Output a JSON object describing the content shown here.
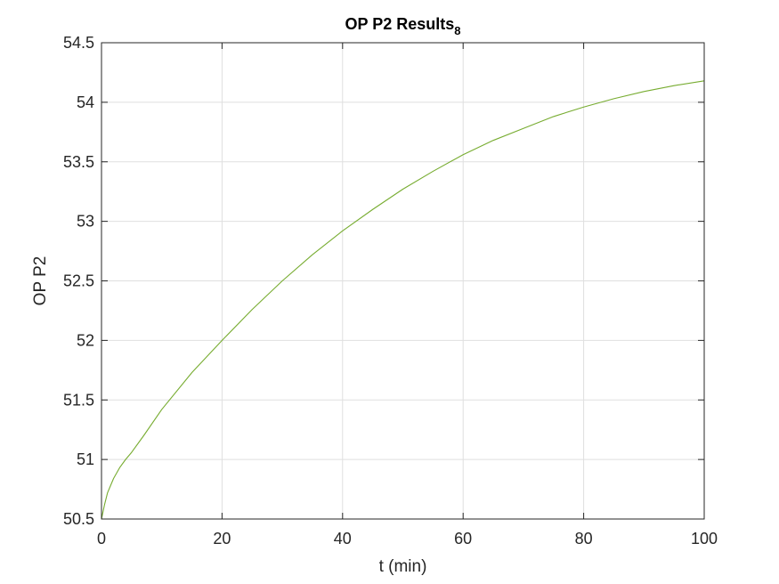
{
  "chart_data": {
    "type": "line",
    "title": "OP P2 Results",
    "title_subscript": "8",
    "xlabel": "t (min)",
    "ylabel": "OP P2",
    "xlim": [
      0,
      100
    ],
    "ylim": [
      50.5,
      54.5
    ],
    "xticks": [
      0,
      20,
      40,
      60,
      80,
      100
    ],
    "yticks": [
      50.5,
      51,
      51.5,
      52,
      52.5,
      53,
      53.5,
      54,
      54.5
    ],
    "xtick_labels": [
      "0",
      "20",
      "40",
      "60",
      "80",
      "100"
    ],
    "ytick_labels": [
      "50.5",
      "51",
      "51.5",
      "52",
      "52.5",
      "53",
      "53.5",
      "54",
      "54.5"
    ],
    "grid": true,
    "series": [
      {
        "color": "#77ac30",
        "x": [
          0,
          0.5,
          1,
          2,
          3,
          4,
          5,
          7,
          10,
          15,
          20,
          25,
          30,
          35,
          40,
          45,
          50,
          55,
          60,
          65,
          70,
          75,
          80,
          85,
          90,
          95,
          100
        ],
        "y": [
          50.5,
          50.62,
          50.72,
          50.84,
          50.93,
          51.0,
          51.06,
          51.2,
          51.42,
          51.73,
          52.0,
          52.26,
          52.5,
          52.72,
          52.92,
          53.1,
          53.27,
          53.42,
          53.56,
          53.68,
          53.78,
          53.88,
          53.96,
          54.03,
          54.09,
          54.14,
          54.18
        ]
      }
    ]
  }
}
